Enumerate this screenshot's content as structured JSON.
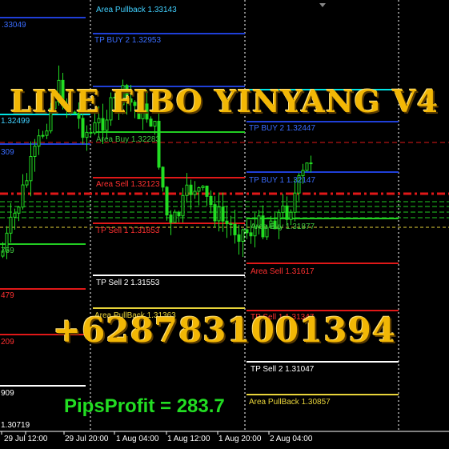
{
  "overlay": {
    "title": "LINE FIBO YINYANG V4",
    "phone": "+6287831001394",
    "pips_profit": "PipsProfit = 283.7"
  },
  "colors": {
    "background": "#000000",
    "blue": "#1f3fd8",
    "cyan": "#00e5e5",
    "green": "#22cc22",
    "red": "#e01818",
    "white": "#ffffff",
    "yellow": "#e8d43a",
    "label_blue": "#3a6cff",
    "label_cyan": "#40d0ff",
    "label_green": "#40c840",
    "label_red": "#ff3030",
    "label_white": "#ffffff",
    "label_yellow": "#e8d43a",
    "candle": "#22dd22"
  },
  "x_axis_labels": [
    "29 Jul 12:00",
    "29 Jul 20:00",
    "1 Aug 04:00",
    "1 Aug 12:00",
    "1 Aug 20:00",
    "2 Aug 04:00"
  ],
  "level_labels": [
    {
      "text": "Area Pullback  1.33143",
      "color": "label_cyan"
    },
    {
      "text": "TP BUY 2  1.32953",
      "color": "label_blue"
    },
    {
      "text": "Area Buy  1.32283",
      "color": "label_green"
    },
    {
      "text": "Area Sell  1.32123",
      "color": "label_red"
    },
    {
      "text": "TP Sell 1  1.31853",
      "color": "label_red"
    },
    {
      "text": "TP Sell 2  1.31553",
      "color": "label_white"
    },
    {
      "text": "Area PullBack  1.31363",
      "color": "label_yellow"
    },
    {
      "text": "TP BUY 2  1.32447",
      "color": "label_blue"
    },
    {
      "text": "TP BUY 1  1.32147",
      "color": "label_blue"
    },
    {
      "text": "Area Buy  1.31877",
      "color": "label_green"
    },
    {
      "text": "Area Sell  1.31617",
      "color": "label_red"
    },
    {
      "text": "TP Sell 1  1.31347",
      "color": "label_red"
    },
    {
      "text": "TP Sell 2  1.31047",
      "color": "label_white"
    },
    {
      "text": "Area PullBack  1.30857",
      "color": "label_yellow"
    },
    {
      "text": ".33049",
      "color": "label_blue"
    },
    {
      "text": "1.32499",
      "color": "label_cyan"
    },
    {
      "text": "309",
      "color": "label_blue"
    },
    {
      "text": "759",
      "color": "label_green"
    },
    {
      "text": "479",
      "color": "label_red"
    },
    {
      "text": "209",
      "color": "label_red"
    },
    {
      "text": "909",
      "color": "label_white"
    },
    {
      "text": "1.30719",
      "color": "label_white"
    }
  ]
}
